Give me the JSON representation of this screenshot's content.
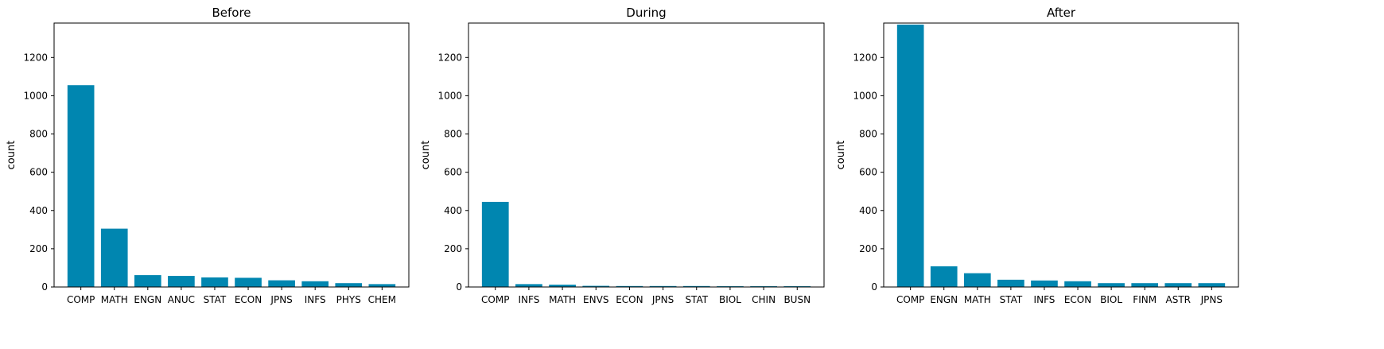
{
  "chart_data": [
    {
      "type": "bar",
      "title": "Before",
      "xlabel": "",
      "ylabel": "count",
      "ylim": [
        0,
        1380
      ],
      "yticks": [
        0,
        200,
        400,
        600,
        800,
        1000,
        1200
      ],
      "categories": [
        "COMP",
        "MATH",
        "ENGN",
        "ANUC",
        "STAT",
        "ECON",
        "JPNS",
        "INFS",
        "PHYS",
        "CHEM"
      ],
      "values": [
        1055,
        305,
        62,
        58,
        50,
        48,
        35,
        30,
        20,
        15
      ],
      "bar_color": "#0086b0"
    },
    {
      "type": "bar",
      "title": "During",
      "xlabel": "",
      "ylabel": "count",
      "ylim": [
        0,
        1380
      ],
      "yticks": [
        0,
        200,
        400,
        600,
        800,
        1000,
        1200
      ],
      "categories": [
        "COMP",
        "INFS",
        "MATH",
        "ENVS",
        "ECON",
        "JPNS",
        "STAT",
        "BIOL",
        "CHIN",
        "BUSN"
      ],
      "values": [
        445,
        15,
        12,
        6,
        5,
        5,
        5,
        4,
        4,
        4
      ],
      "bar_color": "#0086b0"
    },
    {
      "type": "bar",
      "title": "After",
      "xlabel": "",
      "ylabel": "count",
      "ylim": [
        0,
        1380
      ],
      "yticks": [
        0,
        200,
        400,
        600,
        800,
        1000,
        1200
      ],
      "categories": [
        "COMP",
        "ENGN",
        "MATH",
        "STAT",
        "INFS",
        "ECON",
        "BIOL",
        "FINM",
        "ASTR",
        "JPNS"
      ],
      "values": [
        1372,
        108,
        72,
        38,
        34,
        30,
        20,
        20,
        20,
        20
      ],
      "bar_color": "#0086b0"
    }
  ]
}
